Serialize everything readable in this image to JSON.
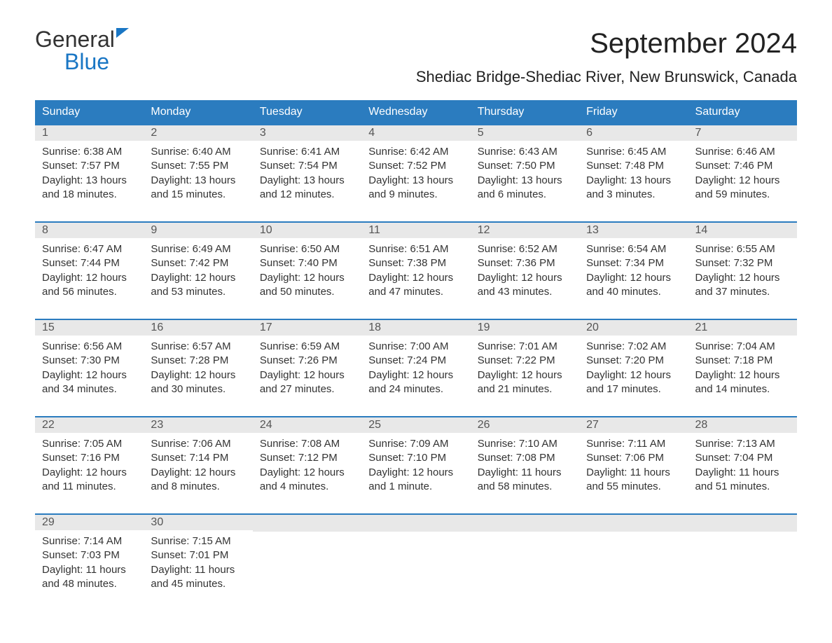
{
  "logo": {
    "general": "General",
    "blue": "Blue"
  },
  "title": "September 2024",
  "location": "Shediac Bridge-Shediac River, New Brunswick, Canada",
  "day_headers": [
    "Sunday",
    "Monday",
    "Tuesday",
    "Wednesday",
    "Thursday",
    "Friday",
    "Saturday"
  ],
  "colors": {
    "header_bg": "#2b7cbf",
    "header_text": "#ffffff",
    "daynum_bg": "#e8e8e8",
    "border": "#2b7cbf",
    "logo_blue": "#1976c4",
    "text": "#333333"
  },
  "weeks": [
    [
      {
        "day": "1",
        "sunrise": "Sunrise: 6:38 AM",
        "sunset": "Sunset: 7:57 PM",
        "daylight1": "Daylight: 13 hours",
        "daylight2": "and 18 minutes."
      },
      {
        "day": "2",
        "sunrise": "Sunrise: 6:40 AM",
        "sunset": "Sunset: 7:55 PM",
        "daylight1": "Daylight: 13 hours",
        "daylight2": "and 15 minutes."
      },
      {
        "day": "3",
        "sunrise": "Sunrise: 6:41 AM",
        "sunset": "Sunset: 7:54 PM",
        "daylight1": "Daylight: 13 hours",
        "daylight2": "and 12 minutes."
      },
      {
        "day": "4",
        "sunrise": "Sunrise: 6:42 AM",
        "sunset": "Sunset: 7:52 PM",
        "daylight1": "Daylight: 13 hours",
        "daylight2": "and 9 minutes."
      },
      {
        "day": "5",
        "sunrise": "Sunrise: 6:43 AM",
        "sunset": "Sunset: 7:50 PM",
        "daylight1": "Daylight: 13 hours",
        "daylight2": "and 6 minutes."
      },
      {
        "day": "6",
        "sunrise": "Sunrise: 6:45 AM",
        "sunset": "Sunset: 7:48 PM",
        "daylight1": "Daylight: 13 hours",
        "daylight2": "and 3 minutes."
      },
      {
        "day": "7",
        "sunrise": "Sunrise: 6:46 AM",
        "sunset": "Sunset: 7:46 PM",
        "daylight1": "Daylight: 12 hours",
        "daylight2": "and 59 minutes."
      }
    ],
    [
      {
        "day": "8",
        "sunrise": "Sunrise: 6:47 AM",
        "sunset": "Sunset: 7:44 PM",
        "daylight1": "Daylight: 12 hours",
        "daylight2": "and 56 minutes."
      },
      {
        "day": "9",
        "sunrise": "Sunrise: 6:49 AM",
        "sunset": "Sunset: 7:42 PM",
        "daylight1": "Daylight: 12 hours",
        "daylight2": "and 53 minutes."
      },
      {
        "day": "10",
        "sunrise": "Sunrise: 6:50 AM",
        "sunset": "Sunset: 7:40 PM",
        "daylight1": "Daylight: 12 hours",
        "daylight2": "and 50 minutes."
      },
      {
        "day": "11",
        "sunrise": "Sunrise: 6:51 AM",
        "sunset": "Sunset: 7:38 PM",
        "daylight1": "Daylight: 12 hours",
        "daylight2": "and 47 minutes."
      },
      {
        "day": "12",
        "sunrise": "Sunrise: 6:52 AM",
        "sunset": "Sunset: 7:36 PM",
        "daylight1": "Daylight: 12 hours",
        "daylight2": "and 43 minutes."
      },
      {
        "day": "13",
        "sunrise": "Sunrise: 6:54 AM",
        "sunset": "Sunset: 7:34 PM",
        "daylight1": "Daylight: 12 hours",
        "daylight2": "and 40 minutes."
      },
      {
        "day": "14",
        "sunrise": "Sunrise: 6:55 AM",
        "sunset": "Sunset: 7:32 PM",
        "daylight1": "Daylight: 12 hours",
        "daylight2": "and 37 minutes."
      }
    ],
    [
      {
        "day": "15",
        "sunrise": "Sunrise: 6:56 AM",
        "sunset": "Sunset: 7:30 PM",
        "daylight1": "Daylight: 12 hours",
        "daylight2": "and 34 minutes."
      },
      {
        "day": "16",
        "sunrise": "Sunrise: 6:57 AM",
        "sunset": "Sunset: 7:28 PM",
        "daylight1": "Daylight: 12 hours",
        "daylight2": "and 30 minutes."
      },
      {
        "day": "17",
        "sunrise": "Sunrise: 6:59 AM",
        "sunset": "Sunset: 7:26 PM",
        "daylight1": "Daylight: 12 hours",
        "daylight2": "and 27 minutes."
      },
      {
        "day": "18",
        "sunrise": "Sunrise: 7:00 AM",
        "sunset": "Sunset: 7:24 PM",
        "daylight1": "Daylight: 12 hours",
        "daylight2": "and 24 minutes."
      },
      {
        "day": "19",
        "sunrise": "Sunrise: 7:01 AM",
        "sunset": "Sunset: 7:22 PM",
        "daylight1": "Daylight: 12 hours",
        "daylight2": "and 21 minutes."
      },
      {
        "day": "20",
        "sunrise": "Sunrise: 7:02 AM",
        "sunset": "Sunset: 7:20 PM",
        "daylight1": "Daylight: 12 hours",
        "daylight2": "and 17 minutes."
      },
      {
        "day": "21",
        "sunrise": "Sunrise: 7:04 AM",
        "sunset": "Sunset: 7:18 PM",
        "daylight1": "Daylight: 12 hours",
        "daylight2": "and 14 minutes."
      }
    ],
    [
      {
        "day": "22",
        "sunrise": "Sunrise: 7:05 AM",
        "sunset": "Sunset: 7:16 PM",
        "daylight1": "Daylight: 12 hours",
        "daylight2": "and 11 minutes."
      },
      {
        "day": "23",
        "sunrise": "Sunrise: 7:06 AM",
        "sunset": "Sunset: 7:14 PM",
        "daylight1": "Daylight: 12 hours",
        "daylight2": "and 8 minutes."
      },
      {
        "day": "24",
        "sunrise": "Sunrise: 7:08 AM",
        "sunset": "Sunset: 7:12 PM",
        "daylight1": "Daylight: 12 hours",
        "daylight2": "and 4 minutes."
      },
      {
        "day": "25",
        "sunrise": "Sunrise: 7:09 AM",
        "sunset": "Sunset: 7:10 PM",
        "daylight1": "Daylight: 12 hours",
        "daylight2": "and 1 minute."
      },
      {
        "day": "26",
        "sunrise": "Sunrise: 7:10 AM",
        "sunset": "Sunset: 7:08 PM",
        "daylight1": "Daylight: 11 hours",
        "daylight2": "and 58 minutes."
      },
      {
        "day": "27",
        "sunrise": "Sunrise: 7:11 AM",
        "sunset": "Sunset: 7:06 PM",
        "daylight1": "Daylight: 11 hours",
        "daylight2": "and 55 minutes."
      },
      {
        "day": "28",
        "sunrise": "Sunrise: 7:13 AM",
        "sunset": "Sunset: 7:04 PM",
        "daylight1": "Daylight: 11 hours",
        "daylight2": "and 51 minutes."
      }
    ],
    [
      {
        "day": "29",
        "sunrise": "Sunrise: 7:14 AM",
        "sunset": "Sunset: 7:03 PM",
        "daylight1": "Daylight: 11 hours",
        "daylight2": "and 48 minutes."
      },
      {
        "day": "30",
        "sunrise": "Sunrise: 7:15 AM",
        "sunset": "Sunset: 7:01 PM",
        "daylight1": "Daylight: 11 hours",
        "daylight2": "and 45 minutes."
      },
      null,
      null,
      null,
      null,
      null
    ]
  ]
}
